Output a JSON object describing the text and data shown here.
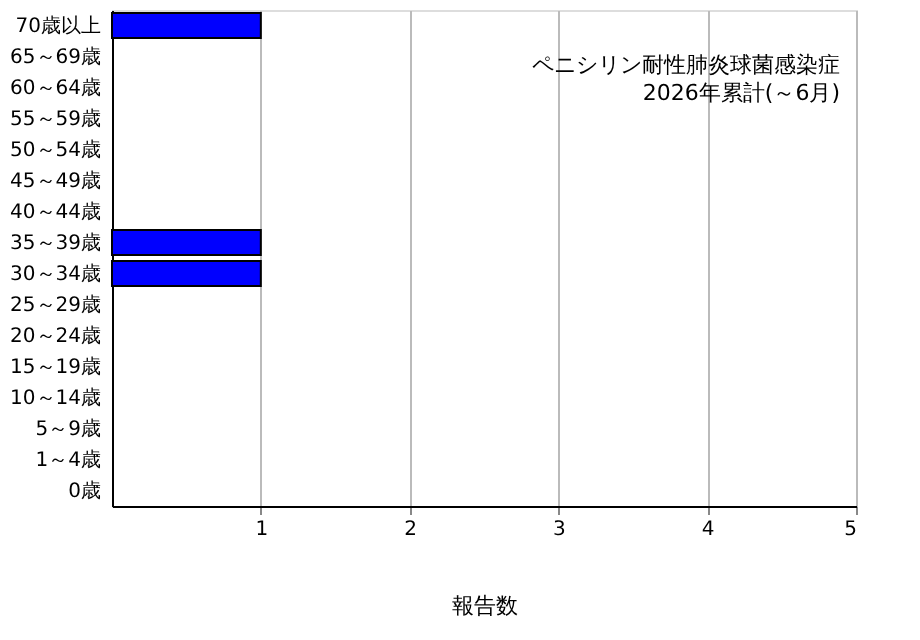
{
  "chart_data": {
    "type": "bar",
    "orientation": "horizontal",
    "title": "ペニシリン耐性肺炎球菌感染症",
    "subtitle": "2026年累計(～6月)",
    "xlabel": "報告数",
    "categories": [
      "70歳以上",
      "65～69歳",
      "60～64歳",
      "55～59歳",
      "50～54歳",
      "45～49歳",
      "40～44歳",
      "35～39歳",
      "30～34歳",
      "25～29歳",
      "20～24歳",
      "15～19歳",
      "10～14歳",
      "5～9歳",
      "1～4歳",
      "0歳"
    ],
    "values": [
      1,
      0,
      0,
      0,
      0,
      0,
      0,
      1,
      1,
      0,
      0,
      0,
      0,
      0,
      0,
      0
    ],
    "color": "#0000ff",
    "xlim": [
      0,
      5
    ],
    "xticks": [
      1,
      2,
      3,
      4,
      5
    ],
    "grid": "x"
  }
}
